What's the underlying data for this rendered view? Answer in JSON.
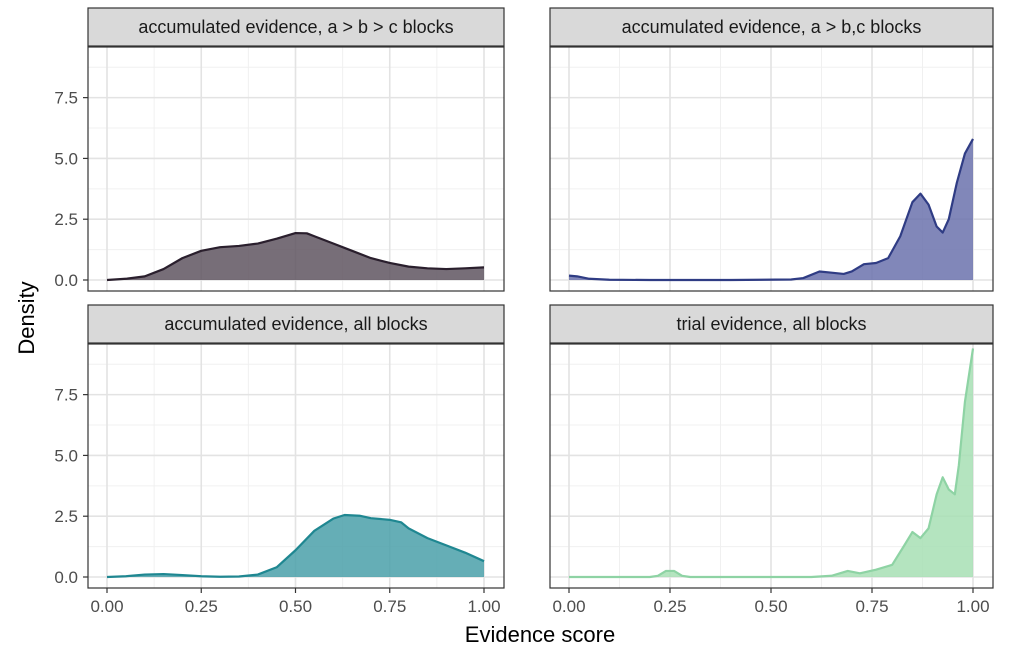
{
  "chart_data": {
    "type": "area",
    "xlabel": "Evidence score",
    "ylabel": "Density",
    "xlim": [
      0,
      1
    ],
    "ylim": [
      0,
      9.5
    ],
    "x_ticks": [
      0,
      0.25,
      0.5,
      0.75,
      1.0
    ],
    "x_tick_labels": [
      "0.00",
      "0.25",
      "0.50",
      "0.75",
      "1.00"
    ],
    "y_ticks": [
      0,
      2.5,
      5,
      7.5
    ],
    "y_tick_labels": [
      "0.0",
      "2.5",
      "5.0",
      "7.5"
    ],
    "grid": true,
    "facets": [
      {
        "title": "accumulated evidence, a > b > c blocks",
        "fill": "#5f5560",
        "line": "#2a1f2d",
        "points": [
          [
            0,
            0
          ],
          [
            0.05,
            0.05
          ],
          [
            0.1,
            0.15
          ],
          [
            0.15,
            0.45
          ],
          [
            0.2,
            0.9
          ],
          [
            0.25,
            1.2
          ],
          [
            0.3,
            1.35
          ],
          [
            0.35,
            1.4
          ],
          [
            0.4,
            1.5
          ],
          [
            0.45,
            1.7
          ],
          [
            0.5,
            1.93
          ],
          [
            0.53,
            1.92
          ],
          [
            0.55,
            1.8
          ],
          [
            0.6,
            1.5
          ],
          [
            0.65,
            1.2
          ],
          [
            0.7,
            0.9
          ],
          [
            0.75,
            0.7
          ],
          [
            0.8,
            0.55
          ],
          [
            0.85,
            0.48
          ],
          [
            0.9,
            0.45
          ],
          [
            0.95,
            0.48
          ],
          [
            1.0,
            0.52
          ]
        ]
      },
      {
        "title": "accumulated evidence, a > b,c blocks",
        "fill": "#6b72ad",
        "line": "#2f3c84",
        "points": [
          [
            0,
            0.18
          ],
          [
            0.02,
            0.15
          ],
          [
            0.05,
            0.05
          ],
          [
            0.1,
            0.01
          ],
          [
            0.2,
            0
          ],
          [
            0.4,
            0
          ],
          [
            0.55,
            0.02
          ],
          [
            0.58,
            0.08
          ],
          [
            0.62,
            0.35
          ],
          [
            0.65,
            0.3
          ],
          [
            0.68,
            0.25
          ],
          [
            0.7,
            0.35
          ],
          [
            0.73,
            0.65
          ],
          [
            0.76,
            0.7
          ],
          [
            0.79,
            0.9
          ],
          [
            0.82,
            1.8
          ],
          [
            0.85,
            3.2
          ],
          [
            0.87,
            3.55
          ],
          [
            0.89,
            3.1
          ],
          [
            0.91,
            2.2
          ],
          [
            0.925,
            1.95
          ],
          [
            0.94,
            2.5
          ],
          [
            0.96,
            4.0
          ],
          [
            0.98,
            5.2
          ],
          [
            1.0,
            5.8
          ]
        ]
      },
      {
        "title": "accumulated evidence, all blocks",
        "fill": "#4aa0a9",
        "line": "#1f8791",
        "points": [
          [
            0,
            0
          ],
          [
            0.05,
            0.03
          ],
          [
            0.1,
            0.1
          ],
          [
            0.15,
            0.12
          ],
          [
            0.2,
            0.08
          ],
          [
            0.25,
            0.03
          ],
          [
            0.3,
            0.01
          ],
          [
            0.35,
            0.02
          ],
          [
            0.4,
            0.1
          ],
          [
            0.45,
            0.4
          ],
          [
            0.5,
            1.1
          ],
          [
            0.55,
            1.9
          ],
          [
            0.6,
            2.4
          ],
          [
            0.63,
            2.55
          ],
          [
            0.67,
            2.52
          ],
          [
            0.7,
            2.42
          ],
          [
            0.75,
            2.35
          ],
          [
            0.78,
            2.25
          ],
          [
            0.8,
            2.0
          ],
          [
            0.85,
            1.6
          ],
          [
            0.9,
            1.3
          ],
          [
            0.95,
            1.0
          ],
          [
            1.0,
            0.65
          ]
        ]
      },
      {
        "title": "trial evidence, all blocks",
        "fill": "#a7dfb4",
        "line": "#8ed3a4",
        "points": [
          [
            0,
            0
          ],
          [
            0.2,
            0
          ],
          [
            0.22,
            0.05
          ],
          [
            0.24,
            0.25
          ],
          [
            0.26,
            0.25
          ],
          [
            0.28,
            0.05
          ],
          [
            0.3,
            0
          ],
          [
            0.6,
            0
          ],
          [
            0.65,
            0.05
          ],
          [
            0.69,
            0.25
          ],
          [
            0.72,
            0.15
          ],
          [
            0.76,
            0.3
          ],
          [
            0.8,
            0.5
          ],
          [
            0.83,
            1.3
          ],
          [
            0.85,
            1.85
          ],
          [
            0.87,
            1.6
          ],
          [
            0.89,
            2.0
          ],
          [
            0.91,
            3.4
          ],
          [
            0.925,
            4.1
          ],
          [
            0.94,
            3.6
          ],
          [
            0.955,
            3.4
          ],
          [
            0.965,
            4.6
          ],
          [
            0.98,
            7.2
          ],
          [
            1.0,
            9.4
          ]
        ]
      }
    ]
  }
}
